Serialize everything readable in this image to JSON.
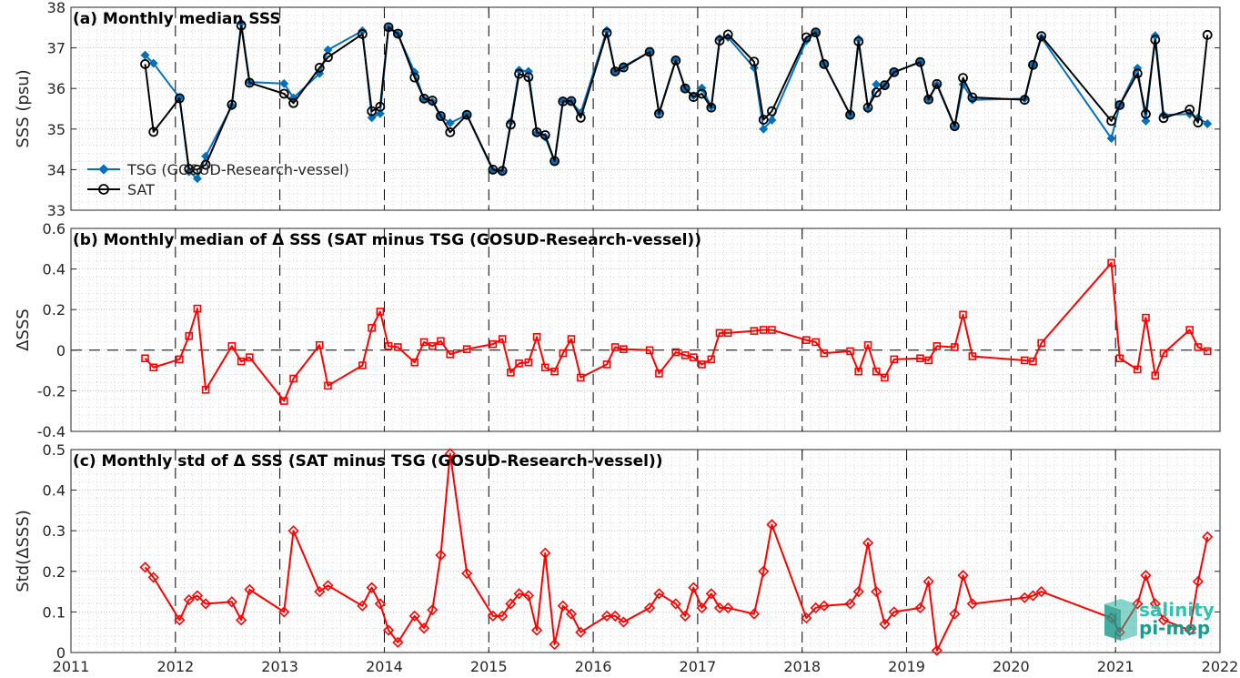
{
  "chart_data": [
    {
      "type": "line",
      "title": "(a) Monthly median SSS",
      "xlabel": "",
      "ylabel": "SSS (psu)",
      "xlim": [
        2011,
        2022
      ],
      "ylim": [
        33,
        38
      ],
      "xticks": [
        "2011",
        "2012",
        "2013",
        "2014",
        "2015",
        "2016",
        "2017",
        "2018",
        "2019",
        "2020",
        "2021",
        "2022"
      ],
      "yticks": [
        "33",
        "34",
        "35",
        "36",
        "37",
        "38"
      ],
      "grid": true,
      "legend": "bottom-left",
      "series": [
        {
          "name": "TSG (GOSUD-Research-vessel)",
          "color": "#0072BD",
          "marker": "filled-diamond",
          "x": [
            2011.71,
            2011.79,
            2012.04,
            2012.13,
            2012.21,
            2012.29,
            2012.54,
            2012.63,
            2012.71,
            2013.04,
            2013.13,
            2013.38,
            2013.46,
            2013.79,
            2013.88,
            2013.96,
            2014.04,
            2014.13,
            2014.29,
            2014.38,
            2014.46,
            2014.54,
            2014.63,
            2014.79,
            2015.04,
            2015.13,
            2015.21,
            2015.29,
            2015.38,
            2015.46,
            2015.54,
            2015.63,
            2015.71,
            2015.79,
            2015.88,
            2016.13,
            2016.21,
            2016.29,
            2016.54,
            2016.63,
            2016.79,
            2016.88,
            2016.96,
            2017.04,
            2017.13,
            2017.21,
            2017.29,
            2017.54,
            2017.63,
            2017.71,
            2018.04,
            2018.13,
            2018.21,
            2018.46,
            2018.54,
            2018.63,
            2018.71,
            2018.79,
            2018.88,
            2019.13,
            2019.21,
            2019.29,
            2019.46,
            2019.54,
            2019.63,
            2020.13,
            2020.21,
            2020.29,
            2020.96,
            2021.04,
            2021.21,
            2021.29,
            2021.38,
            2021.46,
            2021.71,
            2021.79,
            2021.88
          ],
          "values": [
            36.82,
            36.62,
            35.77,
            33.95,
            33.78,
            34.33,
            35.57,
            37.62,
            36.16,
            36.12,
            35.77,
            36.37,
            36.95,
            37.42,
            35.28,
            35.38,
            37.5,
            37.33,
            36.4,
            35.73,
            35.67,
            35.31,
            35.15,
            35.35,
            33.98,
            33.95,
            35.18,
            36.45,
            36.42,
            34.9,
            34.8,
            34.2,
            35.7,
            35.68,
            35.4,
            37.43,
            36.42,
            36.54,
            36.9,
            35.4,
            36.71,
            36.0,
            35.82,
            36.01,
            35.55,
            37.23,
            37.26,
            36.51,
            35.0,
            35.22,
            37.18,
            37.38,
            36.6,
            35.35,
            37.22,
            35.49,
            36.1,
            36.07,
            36.4,
            36.65,
            35.74,
            36.09,
            35.05,
            36.1,
            35.72,
            35.75,
            36.58,
            37.25,
            34.77,
            35.59,
            36.5,
            35.2,
            37.3,
            35.35,
            35.37,
            35.28,
            35.13
          ]
        },
        {
          "name": "SAT",
          "color": "#000000",
          "marker": "open-circle",
          "x": [
            2011.71,
            2011.79,
            2012.04,
            2012.13,
            2012.21,
            2012.29,
            2012.54,
            2012.63,
            2012.71,
            2013.04,
            2013.13,
            2013.38,
            2013.46,
            2013.79,
            2013.88,
            2013.96,
            2014.04,
            2014.13,
            2014.29,
            2014.38,
            2014.46,
            2014.54,
            2014.63,
            2014.79,
            2015.04,
            2015.13,
            2015.21,
            2015.29,
            2015.38,
            2015.46,
            2015.54,
            2015.63,
            2015.71,
            2015.79,
            2015.88,
            2016.13,
            2016.21,
            2016.29,
            2016.54,
            2016.63,
            2016.79,
            2016.88,
            2016.96,
            2017.04,
            2017.13,
            2017.21,
            2017.29,
            2017.54,
            2017.63,
            2017.71,
            2018.04,
            2018.13,
            2018.21,
            2018.46,
            2018.54,
            2018.63,
            2018.71,
            2018.79,
            2018.88,
            2019.13,
            2019.21,
            2019.29,
            2019.46,
            2019.54,
            2019.63,
            2020.13,
            2020.21,
            2020.29,
            2020.96,
            2021.04,
            2021.21,
            2021.29,
            2021.38,
            2021.46,
            2021.71,
            2021.79,
            2021.88
          ],
          "values": [
            36.6,
            34.93,
            35.76,
            34.02,
            34.0,
            34.12,
            35.6,
            37.55,
            36.14,
            35.87,
            35.64,
            36.51,
            36.77,
            37.34,
            35.44,
            35.55,
            37.51,
            37.35,
            36.27,
            35.75,
            35.7,
            35.32,
            34.92,
            35.35,
            34.0,
            33.97,
            35.11,
            36.36,
            36.28,
            34.92,
            34.85,
            34.21,
            35.68,
            35.69,
            35.28,
            37.37,
            36.42,
            36.52,
            36.9,
            35.38,
            36.69,
            36.0,
            35.79,
            35.87,
            35.53,
            37.18,
            37.33,
            36.66,
            35.23,
            35.44,
            37.26,
            37.38,
            36.6,
            35.35,
            37.16,
            35.53,
            35.9,
            36.08,
            36.4,
            36.65,
            35.73,
            36.11,
            35.07,
            36.26,
            35.78,
            35.72,
            36.58,
            37.29,
            35.2,
            35.59,
            36.37,
            35.37,
            37.2,
            35.27,
            35.48,
            35.16,
            37.32
          ]
        }
      ]
    },
    {
      "type": "line",
      "title": "(b) Monthly median of Δ SSS (SAT minus TSG (GOSUD-Research-vessel))",
      "xlabel": "",
      "ylabel": "ΔSSS",
      "xlim": [
        2011,
        2022
      ],
      "ylim": [
        -0.4,
        0.6
      ],
      "xticks": [
        "2011",
        "2012",
        "2013",
        "2014",
        "2015",
        "2016",
        "2017",
        "2018",
        "2019",
        "2020",
        "2021",
        "2022"
      ],
      "yticks": [
        "-0.4",
        "-0.2",
        "0",
        "0.2",
        "0.4",
        "0.6"
      ],
      "grid": true,
      "series": [
        {
          "color": "#FF0000",
          "marker": "open-square",
          "x": [
            2011.71,
            2011.79,
            2012.04,
            2012.13,
            2012.21,
            2012.29,
            2012.54,
            2012.63,
            2012.71,
            2013.04,
            2013.13,
            2013.38,
            2013.46,
            2013.79,
            2013.88,
            2013.96,
            2014.04,
            2014.13,
            2014.29,
            2014.38,
            2014.46,
            2014.54,
            2014.63,
            2014.79,
            2015.04,
            2015.13,
            2015.21,
            2015.29,
            2015.38,
            2015.46,
            2015.54,
            2015.63,
            2015.71,
            2015.79,
            2015.88,
            2016.13,
            2016.21,
            2016.29,
            2016.54,
            2016.63,
            2016.79,
            2016.88,
            2016.96,
            2017.04,
            2017.13,
            2017.21,
            2017.29,
            2017.54,
            2017.63,
            2017.71,
            2018.04,
            2018.13,
            2018.21,
            2018.46,
            2018.54,
            2018.63,
            2018.71,
            2018.79,
            2018.88,
            2019.13,
            2019.21,
            2019.29,
            2019.46,
            2019.54,
            2019.63,
            2020.13,
            2020.21,
            2020.29,
            2020.96,
            2021.04,
            2021.21,
            2021.29,
            2021.38,
            2021.46,
            2021.71,
            2021.79,
            2021.88
          ],
          "values": [
            -0.04,
            -0.085,
            -0.045,
            0.07,
            0.205,
            -0.195,
            0.02,
            -0.055,
            -0.035,
            -0.25,
            -0.14,
            0.025,
            -0.175,
            -0.075,
            0.11,
            0.19,
            0.02,
            0.015,
            -0.06,
            0.04,
            0.02,
            0.045,
            -0.02,
            0.005,
            0.03,
            0.055,
            -0.11,
            -0.065,
            -0.06,
            0.065,
            -0.085,
            -0.105,
            -0.015,
            0.055,
            -0.135,
            -0.07,
            0.015,
            0.005,
            0.0,
            -0.115,
            -0.01,
            -0.025,
            -0.035,
            -0.07,
            -0.045,
            0.085,
            0.085,
            0.095,
            0.1,
            0.1,
            0.05,
            0.04,
            -0.015,
            -0.005,
            -0.105,
            0.025,
            -0.105,
            -0.135,
            -0.045,
            -0.04,
            -0.05,
            0.02,
            0.015,
            0.175,
            -0.03,
            -0.05,
            -0.055,
            0.035,
            0.43,
            -0.04,
            -0.095,
            0.16,
            -0.125,
            -0.015,
            0.1,
            0.015,
            -0.005
          ]
        }
      ]
    },
    {
      "type": "line",
      "title": "(c) Monthly std of Δ SSS (SAT minus TSG (GOSUD-Research-vessel))",
      "xlabel": "",
      "ylabel": "Std(ΔSSS)",
      "xlim": [
        2011,
        2022
      ],
      "ylim": [
        0,
        0.5
      ],
      "xticks": [
        "2011",
        "2012",
        "2013",
        "2014",
        "2015",
        "2016",
        "2017",
        "2018",
        "2019",
        "2020",
        "2021",
        "2022"
      ],
      "yticks": [
        "0",
        "0.1",
        "0.2",
        "0.3",
        "0.4",
        "0.5"
      ],
      "grid": true,
      "series": [
        {
          "color": "#FF0000",
          "marker": "open-diamond",
          "x": [
            2011.71,
            2011.79,
            2012.04,
            2012.13,
            2012.21,
            2012.29,
            2012.54,
            2012.63,
            2012.71,
            2013.04,
            2013.13,
            2013.38,
            2013.46,
            2013.79,
            2013.88,
            2013.96,
            2014.04,
            2014.13,
            2014.29,
            2014.38,
            2014.46,
            2014.54,
            2014.63,
            2014.79,
            2015.04,
            2015.13,
            2015.21,
            2015.29,
            2015.38,
            2015.46,
            2015.54,
            2015.63,
            2015.71,
            2015.79,
            2015.88,
            2016.13,
            2016.21,
            2016.29,
            2016.54,
            2016.63,
            2016.79,
            2016.88,
            2016.96,
            2017.04,
            2017.13,
            2017.21,
            2017.29,
            2017.54,
            2017.63,
            2017.71,
            2018.04,
            2018.13,
            2018.21,
            2018.46,
            2018.54,
            2018.63,
            2018.71,
            2018.79,
            2018.88,
            2019.13,
            2019.21,
            2019.29,
            2019.46,
            2019.54,
            2019.63,
            2020.13,
            2020.21,
            2020.29,
            2020.96,
            2021.04,
            2021.21,
            2021.29,
            2021.38,
            2021.46,
            2021.71,
            2021.79,
            2021.88
          ],
          "values": [
            0.21,
            0.185,
            0.08,
            0.13,
            0.14,
            0.12,
            0.125,
            0.08,
            0.155,
            0.1,
            0.3,
            0.15,
            0.165,
            0.115,
            0.16,
            0.12,
            0.055,
            0.025,
            0.09,
            0.06,
            0.105,
            0.24,
            0.49,
            0.195,
            0.09,
            0.09,
            0.12,
            0.145,
            0.14,
            0.055,
            0.245,
            0.02,
            0.115,
            0.095,
            0.05,
            0.09,
            0.09,
            0.075,
            0.11,
            0.145,
            0.12,
            0.09,
            0.16,
            0.11,
            0.145,
            0.11,
            0.11,
            0.095,
            0.2,
            0.315,
            0.085,
            0.11,
            0.115,
            0.12,
            0.15,
            0.27,
            0.15,
            0.07,
            0.1,
            0.11,
            0.175,
            0.005,
            0.095,
            0.19,
            0.12,
            0.135,
            0.14,
            0.15,
            0.085,
            0.05,
            0.12,
            0.19,
            0.12,
            0.08,
            0.055,
            0.175,
            0.285
          ]
        }
      ]
    }
  ],
  "logo": {
    "line1": "salinity",
    "line2": "pi-mep"
  }
}
